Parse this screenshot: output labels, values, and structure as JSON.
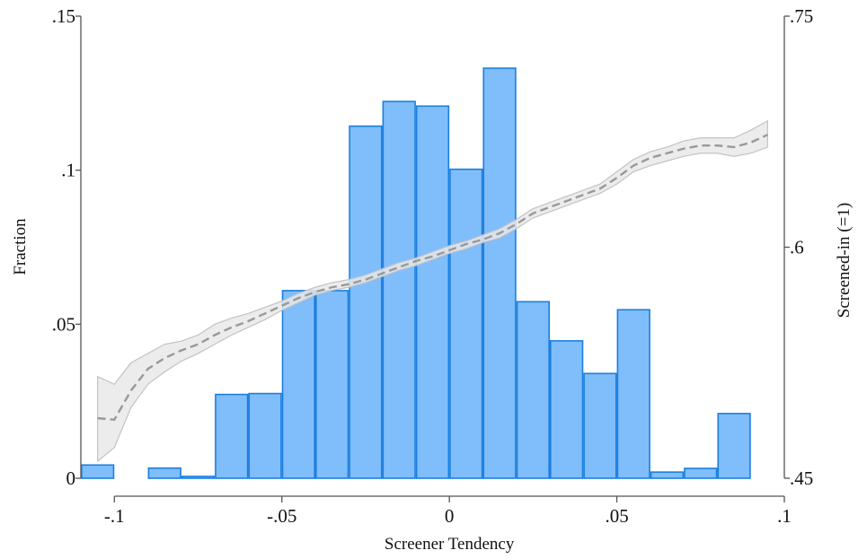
{
  "chart_data": {
    "type": "bar",
    "xlabel": "Screener Tendency",
    "ylabel": "Fraction",
    "y2label": "Screened-in (=1)",
    "xlim": [
      -0.11,
      0.1
    ],
    "ylim": [
      0,
      0.15
    ],
    "y2lim": [
      0.45,
      0.75
    ],
    "xticks": [
      {
        "v": -0.1,
        "label": "-.1"
      },
      {
        "v": -0.05,
        "label": "-.05"
      },
      {
        "v": 0,
        "label": "0"
      },
      {
        "v": 0.05,
        "label": ".05"
      },
      {
        "v": 0.1,
        "label": ".1"
      }
    ],
    "yticks": [
      {
        "v": 0,
        "label": "0"
      },
      {
        "v": 0.05,
        "label": ".05"
      },
      {
        "v": 0.1,
        "label": ".1"
      },
      {
        "v": 0.15,
        "label": ".15"
      }
    ],
    "y2ticks": [
      {
        "v": 0.45,
        "label": ".45"
      },
      {
        "v": 0.6,
        "label": ".6"
      },
      {
        "v": 0.75,
        "label": ".75"
      }
    ],
    "grid": false,
    "colors": {
      "bar_fill": "#80bdfb",
      "bar_stroke": "#1a7fe0",
      "line": "#999999",
      "band": "#e9e9e9",
      "band_stroke": "#c3c3c3"
    },
    "histogram": {
      "bin_width": 0.01,
      "bins": [
        {
          "start": -0.11,
          "value": 0.0043
        },
        {
          "start": -0.09,
          "value": 0.0033
        },
        {
          "start": -0.08,
          "value": 0.0006
        },
        {
          "start": -0.07,
          "value": 0.0272
        },
        {
          "start": -0.06,
          "value": 0.0275
        },
        {
          "start": -0.05,
          "value": 0.0609
        },
        {
          "start": -0.04,
          "value": 0.0609
        },
        {
          "start": -0.03,
          "value": 0.1143
        },
        {
          "start": -0.02,
          "value": 0.1223
        },
        {
          "start": -0.01,
          "value": 0.1208
        },
        {
          "start": 0.0,
          "value": 0.1003
        },
        {
          "start": 0.01,
          "value": 0.1331
        },
        {
          "start": 0.02,
          "value": 0.0573
        },
        {
          "start": 0.03,
          "value": 0.0446
        },
        {
          "start": 0.04,
          "value": 0.034
        },
        {
          "start": 0.05,
          "value": 0.0547
        },
        {
          "start": 0.06,
          "value": 0.002
        },
        {
          "start": 0.07,
          "value": 0.0032
        },
        {
          "start": 0.08,
          "value": 0.021
        }
      ]
    },
    "line_series": {
      "axis": "right",
      "style": "dashed",
      "points": [
        {
          "x": -0.105,
          "y": 0.489,
          "lo": 0.461,
          "hi": 0.516
        },
        {
          "x": -0.1,
          "y": 0.488,
          "lo": 0.47,
          "hi": 0.511
        },
        {
          "x": -0.095,
          "y": 0.507,
          "lo": 0.496,
          "hi": 0.525
        },
        {
          "x": -0.09,
          "y": 0.521,
          "lo": 0.511,
          "hi": 0.531
        },
        {
          "x": -0.085,
          "y": 0.528,
          "lo": 0.519,
          "hi": 0.537
        },
        {
          "x": -0.08,
          "y": 0.533,
          "lo": 0.526,
          "hi": 0.539
        },
        {
          "x": -0.075,
          "y": 0.537,
          "lo": 0.531,
          "hi": 0.543
        },
        {
          "x": -0.07,
          "y": 0.543,
          "lo": 0.537,
          "hi": 0.55
        },
        {
          "x": -0.065,
          "y": 0.548,
          "lo": 0.543,
          "hi": 0.554
        },
        {
          "x": -0.06,
          "y": 0.552,
          "lo": 0.548,
          "hi": 0.557
        },
        {
          "x": -0.055,
          "y": 0.557,
          "lo": 0.553,
          "hi": 0.561
        },
        {
          "x": -0.05,
          "y": 0.562,
          "lo": 0.559,
          "hi": 0.565
        },
        {
          "x": -0.045,
          "y": 0.567,
          "lo": 0.564,
          "hi": 0.57
        },
        {
          "x": -0.04,
          "y": 0.571,
          "lo": 0.569,
          "hi": 0.574
        },
        {
          "x": -0.035,
          "y": 0.574,
          "lo": 0.572,
          "hi": 0.577
        },
        {
          "x": -0.03,
          "y": 0.576,
          "lo": 0.574,
          "hi": 0.579
        },
        {
          "x": -0.025,
          "y": 0.579,
          "lo": 0.577,
          "hi": 0.582
        },
        {
          "x": -0.02,
          "y": 0.583,
          "lo": 0.581,
          "hi": 0.586
        },
        {
          "x": -0.015,
          "y": 0.587,
          "lo": 0.585,
          "hi": 0.59
        },
        {
          "x": -0.01,
          "y": 0.591,
          "lo": 0.588,
          "hi": 0.593
        },
        {
          "x": -0.005,
          "y": 0.594,
          "lo": 0.592,
          "hi": 0.597
        },
        {
          "x": 0.0,
          "y": 0.598,
          "lo": 0.596,
          "hi": 0.601
        },
        {
          "x": 0.005,
          "y": 0.602,
          "lo": 0.599,
          "hi": 0.604
        },
        {
          "x": 0.01,
          "y": 0.605,
          "lo": 0.603,
          "hi": 0.608
        },
        {
          "x": 0.015,
          "y": 0.609,
          "lo": 0.606,
          "hi": 0.612
        },
        {
          "x": 0.02,
          "y": 0.615,
          "lo": 0.612,
          "hi": 0.618
        },
        {
          "x": 0.025,
          "y": 0.622,
          "lo": 0.619,
          "hi": 0.625
        },
        {
          "x": 0.03,
          "y": 0.626,
          "lo": 0.623,
          "hi": 0.629
        },
        {
          "x": 0.035,
          "y": 0.63,
          "lo": 0.627,
          "hi": 0.633
        },
        {
          "x": 0.04,
          "y": 0.634,
          "lo": 0.631,
          "hi": 0.637
        },
        {
          "x": 0.045,
          "y": 0.638,
          "lo": 0.635,
          "hi": 0.641
        },
        {
          "x": 0.05,
          "y": 0.645,
          "lo": 0.641,
          "hi": 0.649
        },
        {
          "x": 0.055,
          "y": 0.653,
          "lo": 0.649,
          "hi": 0.657
        },
        {
          "x": 0.06,
          "y": 0.658,
          "lo": 0.653,
          "hi": 0.662
        },
        {
          "x": 0.065,
          "y": 0.661,
          "lo": 0.656,
          "hi": 0.665
        },
        {
          "x": 0.07,
          "y": 0.664,
          "lo": 0.659,
          "hi": 0.669
        },
        {
          "x": 0.075,
          "y": 0.666,
          "lo": 0.661,
          "hi": 0.671
        },
        {
          "x": 0.08,
          "y": 0.666,
          "lo": 0.661,
          "hi": 0.671
        },
        {
          "x": 0.085,
          "y": 0.665,
          "lo": 0.659,
          "hi": 0.671
        },
        {
          "x": 0.09,
          "y": 0.668,
          "lo": 0.661,
          "hi": 0.676
        },
        {
          "x": 0.095,
          "y": 0.673,
          "lo": 0.665,
          "hi": 0.682
        }
      ]
    }
  }
}
